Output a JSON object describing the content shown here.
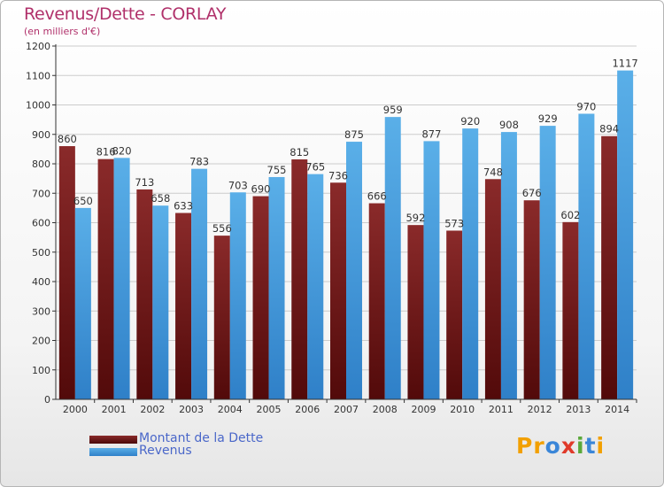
{
  "title": "Revenus/Dette - CORLAY",
  "subtitle": "(en milliers d'€)",
  "logo": {
    "text": "Proxiti",
    "letters": [
      "P",
      "r",
      "o",
      "x",
      "i",
      "t",
      "i"
    ],
    "colors": [
      "#f2a000",
      "#f2a000",
      "#3a86d8",
      "#e03a2a",
      "#5aa83a",
      "#3a86d8",
      "#f2a000"
    ]
  },
  "colors": {
    "dette": "#7a1f1f",
    "dette_dark": "#4a0808",
    "revenus": "#56a9e6",
    "revenus_dark": "#2f80c8",
    "axis": "#333333",
    "grid": "#cccccc",
    "title": "#b0306a",
    "legend_text": "#4a67c9"
  },
  "legend": [
    {
      "label": "Montant de la Dette",
      "series": "dette"
    },
    {
      "label": "Revenus",
      "series": "revenus"
    }
  ],
  "chart_data": {
    "type": "bar",
    "title": "Revenus/Dette - CORLAY",
    "subtitle": "(en milliers d'€)",
    "categories": [
      "2000",
      "2001",
      "2002",
      "2003",
      "2004",
      "2005",
      "2006",
      "2007",
      "2008",
      "2009",
      "2010",
      "2011",
      "2012",
      "2013",
      "2014"
    ],
    "series": [
      {
        "name": "Montant de la Dette",
        "values": [
          860,
          816,
          713,
          633,
          556,
          690,
          815,
          736,
          666,
          592,
          573,
          748,
          676,
          602,
          894
        ]
      },
      {
        "name": "Revenus",
        "values": [
          650,
          820,
          658,
          783,
          703,
          755,
          765,
          875,
          959,
          877,
          920,
          908,
          929,
          970,
          1117
        ]
      }
    ],
    "ylim": [
      0,
      1200
    ],
    "yticks": [
      0,
      100,
      200,
      300,
      400,
      500,
      600,
      700,
      800,
      900,
      1000,
      1100,
      1200
    ],
    "grid": true,
    "legend_position": "bottom-left"
  }
}
